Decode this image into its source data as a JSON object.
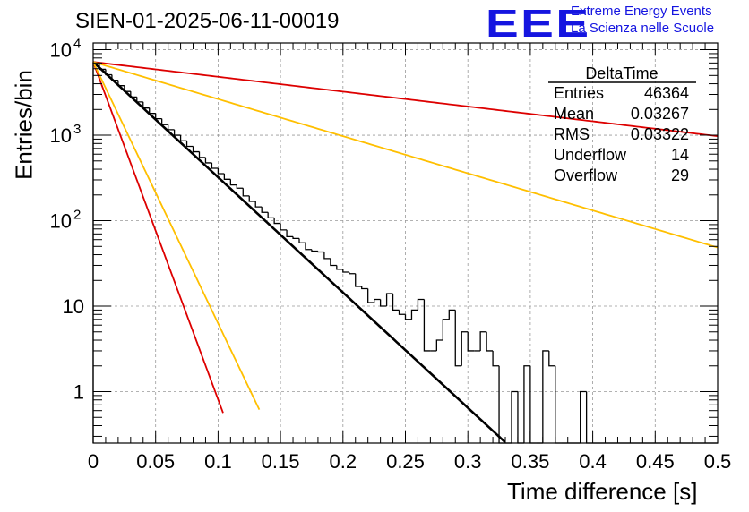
{
  "header": {
    "title": "SIEN-01-2025-06-11-00019",
    "logo_text": "EEE",
    "logo_line1": "Extreme Energy Events",
    "logo_line2": "La Scienza nelle Scuole"
  },
  "stats_box": {
    "name": "DeltaTime",
    "rows": [
      {
        "label": "Entries",
        "value": "46364"
      },
      {
        "label": "Mean",
        "value": "0.03267"
      },
      {
        "label": "RMS",
        "value": "0.03322"
      },
      {
        "label": "Underflow",
        "value": "14"
      },
      {
        "label": "Overflow",
        "value": "29"
      }
    ]
  },
  "colors": {
    "histogram": "#000000",
    "fit": "#000000",
    "red": "#dd0000",
    "orange": "#ffbf00",
    "logo": "#1515e0",
    "grid": "#999999"
  },
  "chart_data": {
    "type": "line",
    "title": "SIEN-01-2025-06-11-00019",
    "xlabel": "Time difference [s]",
    "ylabel": "Entries/bin",
    "xlim": [
      0,
      0.5
    ],
    "ylim": [
      0.25,
      12000
    ],
    "yscale": "log",
    "grid": true,
    "legend": "none",
    "x_ticks": [
      "0",
      "0.05",
      "0.1",
      "0.15",
      "0.2",
      "0.25",
      "0.3",
      "0.35",
      "0.4",
      "0.45",
      "0.5"
    ],
    "y_ticks": [
      {
        "value": 1,
        "label": "1"
      },
      {
        "value": 10,
        "label": "10"
      },
      {
        "value": 100,
        "label": "10",
        "exp": "2"
      },
      {
        "value": 1000,
        "label": "10",
        "exp": "3"
      },
      {
        "value": 10000,
        "label": "10",
        "exp": "4"
      }
    ],
    "histogram": {
      "bin_width": 0.005,
      "values": [
        6900,
        5900,
        5100,
        4400,
        3800,
        3250,
        2800,
        2450,
        2080,
        1800,
        1560,
        1330,
        1160,
        1000,
        860,
        740,
        640,
        550,
        475,
        410,
        355,
        305,
        262,
        240,
        195,
        168,
        145,
        125,
        108,
        93,
        78,
        65,
        62,
        55,
        46,
        44,
        43,
        36,
        30,
        27,
        25,
        24,
        17,
        16,
        11,
        12,
        10,
        14,
        9,
        8,
        7,
        9,
        12,
        3,
        3,
        4,
        7,
        9,
        2,
        5,
        3,
        3,
        5,
        3,
        2,
        0,
        0,
        1,
        0,
        2,
        0,
        0,
        3,
        2,
        0,
        0,
        0,
        0,
        1,
        0,
        0,
        0,
        0,
        0,
        0,
        0,
        0,
        0,
        0,
        0,
        0,
        0,
        0,
        0,
        0,
        0,
        0,
        0,
        0,
        0
      ]
    },
    "series": [
      {
        "color": "black",
        "y0": 7200,
        "tau": 0.0322,
        "x_end": 0.34
      },
      {
        "color": "red",
        "y0": 7200,
        "tau": 0.011,
        "x_end": 0.104
      },
      {
        "color": "orange",
        "y0": 7200,
        "tau": 0.0142,
        "x_end": 0.133
      },
      {
        "color": "red",
        "y0": 7200,
        "tau": 0.25,
        "x_end": 0.5
      },
      {
        "color": "orange",
        "y0": 7200,
        "tau": 0.1,
        "x_end": 0.5
      }
    ]
  }
}
